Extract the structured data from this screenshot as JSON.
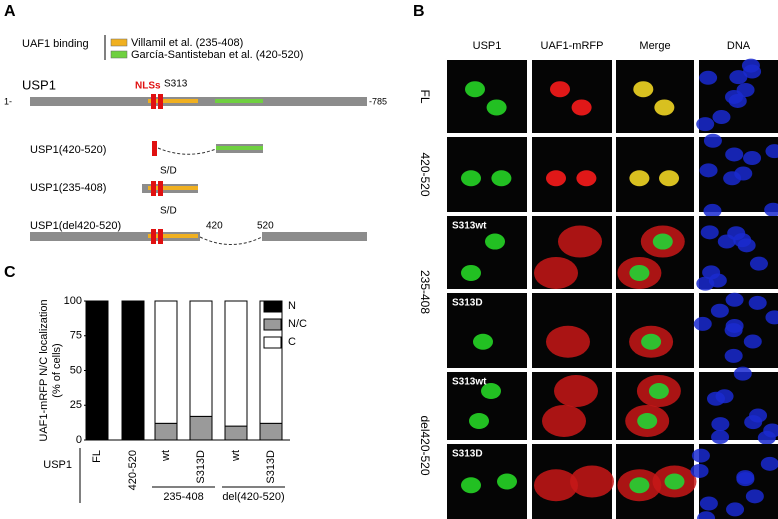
{
  "panel_a": {
    "label": "A",
    "legend_title": "UAF1 binding",
    "legend": [
      "Villamil et al. (235-408)",
      "García-Santisteban et al. (420-520)"
    ],
    "full": {
      "name": "USP1",
      "start": "1-",
      "end": "-785",
      "nls": "NLSs",
      "site": "S313"
    },
    "variants": [
      {
        "name": "USP1(420-520)"
      },
      {
        "name": "USP1(235-408)",
        "site": "S/D"
      },
      {
        "name": "USP1(del420-520)",
        "site": "S/D",
        "gap": [
          "420",
          "520"
        ]
      }
    ]
  },
  "panel_b": {
    "label": "B",
    "columns": [
      "USP1",
      "UAF1-mRFP",
      "Merge",
      "DNA"
    ],
    "groups": [
      "FL",
      "420-520",
      "235-408",
      "del420-520"
    ],
    "inner_labels": [
      "S313wt",
      "S313D",
      "S313wt",
      "S313D"
    ]
  },
  "chart_data": {
    "type": "stacked-bar",
    "label": "C",
    "ylabel": [
      "UAF1-mRFP N/C localization",
      "(% of cells)"
    ],
    "categories": [
      "FL",
      "420-520",
      "wt",
      "S313D",
      "wt",
      "S313D"
    ],
    "series": [
      {
        "name": "N",
        "color": "#000000",
        "values": [
          100,
          100,
          0,
          0,
          0,
          0
        ]
      },
      {
        "name": "N/C",
        "color": "#9a9a9a",
        "values": [
          0,
          0,
          12,
          17,
          10,
          12
        ]
      },
      {
        "name": "C",
        "color": "#ffffff",
        "values": [
          0,
          0,
          88,
          83,
          90,
          88
        ]
      }
    ],
    "ylim": [
      0,
      100
    ],
    "yticks": [
      0,
      25,
      50,
      75,
      100
    ],
    "row_label": "USP1",
    "groups": [
      "235-408",
      "del(420-520)"
    ]
  }
}
